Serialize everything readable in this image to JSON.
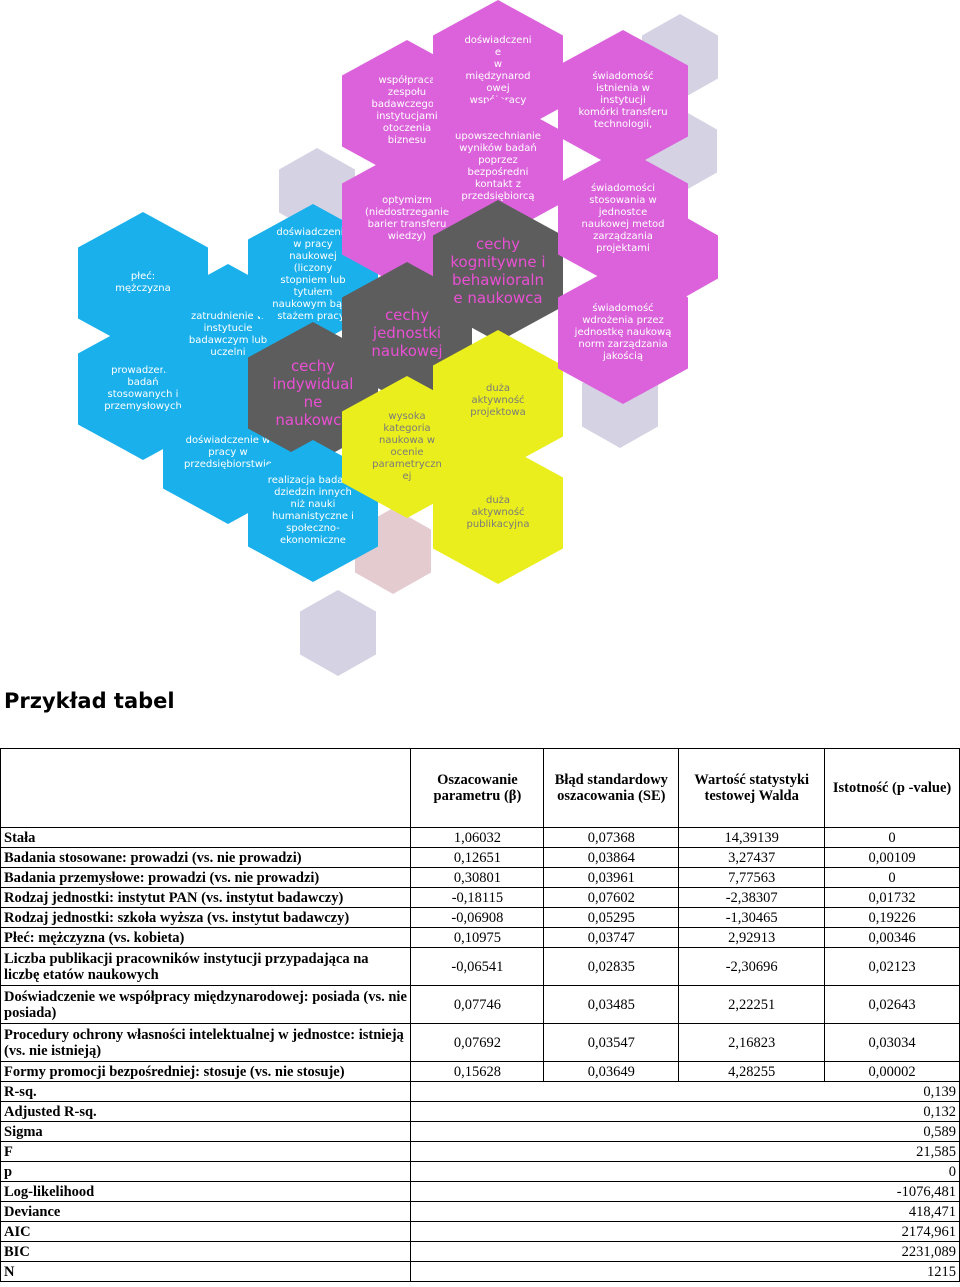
{
  "diagram": {
    "hexes": [
      {
        "text": "płeć:\nmężczyzna",
        "color": "blue"
      },
      {
        "text": "prowadzenie\nbadań\nstosowanych i\nprzemysłowych",
        "color": "blue"
      },
      {
        "text": "zatrudnienie w\ninstytucie\nbadawczym lub\nuczelni",
        "color": "blue"
      },
      {
        "text": "doświadczenie w\npracy w\nprzedsiębiorstwie",
        "color": "blue"
      },
      {
        "text": "doświadczenie\nw pracy\nnaukowej\n(liczony\nstopniem lub\ntytułem\nnaukowym bądź\nstażem pracy)",
        "color": "blue"
      },
      {
        "text": "cechy\nindywidual\nne\nnaukowca",
        "color": "dark"
      },
      {
        "text": "realizacja badań z\ndziedzin innych\nniż nauki\nhumanistyczne i\nspołeczno-\nekonomiczne",
        "color": "blue"
      },
      {
        "text": "współpraca\nzespołu\nbadawczego z\ninstytucjami\notoczenia\nbiznesu",
        "color": "pink"
      },
      {
        "text": "optymizm\n(niedostrzeganie\nbarier transferu\nwiedzy)",
        "color": "pink"
      },
      {
        "text": "cechy\njednostki\nnaukowej",
        "color": "dark"
      },
      {
        "text": "wysoka\nkategoria\nnaukowa w\nocenie\nparametryczn\nej",
        "color": "yellow"
      },
      {
        "text": "doświadczeni\ne\nw\nmiędzynarod\nowej\nwspółpracy",
        "color": "pink"
      },
      {
        "text": "upowszechnianie\nwyników badań\npoprzez\nbezpośredni\nkontakt z\nprzedsiębiorcą",
        "color": "pink"
      },
      {
        "text": "cechy\nkognitywne i\nbehawioraln\ne naukowca",
        "color": "dark"
      },
      {
        "text": "duża\naktywność\nprojektowa",
        "color": "yellow"
      },
      {
        "text": "duża\naktywność\npublikacyjna",
        "color": "yellow"
      },
      {
        "text": "świadomość\nistnienia w instytucji\nkomórki transferu\ntechnologii,",
        "color": "pink"
      },
      {
        "text": "świadomości\nstosowania w\njednostce\nnaukowej metod\nzarządzania\nprojektami",
        "color": "pink"
      },
      {
        "text": "świadomość\nwdrożenia przez\njednostkę naukową\nnorm zarządzania\njakością",
        "color": "pink"
      }
    ]
  },
  "section_title": "Przykład tabel",
  "table": {
    "headers": [
      "",
      "Oszacowanie parametru (β)",
      "Błąd standardowy oszacowania (SE)",
      "Wartość statystyki testowej Walda",
      "Istotność (p -value)"
    ],
    "rows": [
      {
        "label": "Stała",
        "values": [
          "1,06032",
          "0,07368",
          "14,39139",
          "0"
        ]
      },
      {
        "label": "Badania stosowane: prowadzi (vs. nie prowadzi)",
        "values": [
          "0,12651",
          "0,03864",
          "3,27437",
          "0,00109"
        ]
      },
      {
        "label": "Badania przemysłowe: prowadzi (vs. nie prowadzi)",
        "values": [
          "0,30801",
          "0,03961",
          "7,77563",
          "0"
        ]
      },
      {
        "label": "Rodzaj jednostki: instytut PAN (vs. instytut badawczy)",
        "values": [
          "-0,18115",
          "0,07602",
          "-2,38307",
          "0,01732"
        ]
      },
      {
        "label": "Rodzaj jednostki: szkoła wyższa (vs. instytut badawczy)",
        "values": [
          "-0,06908",
          "0,05295",
          "-1,30465",
          "0,19226"
        ]
      },
      {
        "label": "Płeć: mężczyzna (vs. kobieta)",
        "values": [
          "0,10975",
          "0,03747",
          "2,92913",
          "0,00346"
        ]
      },
      {
        "label": "Liczba publikacji pracowników instytucji przypadająca na liczbę etatów naukowych",
        "values": [
          "-0,06541",
          "0,02835",
          "-2,30696",
          "0,02123"
        ]
      },
      {
        "label": "Doświadczenie we współpracy międzynarodowej: posiada (vs. nie posiada)",
        "values": [
          "0,07746",
          "0,03485",
          "2,22251",
          "0,02643"
        ]
      },
      {
        "label": "Procedury ochrony własności intelektualnej w jednostce: istnieją (vs. nie istnieją)",
        "values": [
          "0,07692",
          "0,03547",
          "2,16823",
          "0,03034"
        ]
      },
      {
        "label": "Formy promocji bezpośredniej: stosuje (vs. nie stosuje)",
        "values": [
          "0,15628",
          "0,03649",
          "4,28255",
          "0,00002"
        ]
      }
    ],
    "stats": [
      {
        "label": "R-sq.",
        "value": "0,139"
      },
      {
        "label": "Adjusted R-sq.",
        "value": "0,132"
      },
      {
        "label": "Sigma",
        "value": "0,589"
      },
      {
        "label": "F",
        "value": "21,585"
      },
      {
        "label": "p",
        "value": "0"
      },
      {
        "label": "Log-likelihood",
        "value": "-1076,481"
      },
      {
        "label": "Deviance",
        "value": "418,471"
      },
      {
        "label": "AIC",
        "value": "2174,961"
      },
      {
        "label": "BIC",
        "value": "2231,089"
      },
      {
        "label": "N",
        "value": "1215"
      }
    ]
  }
}
